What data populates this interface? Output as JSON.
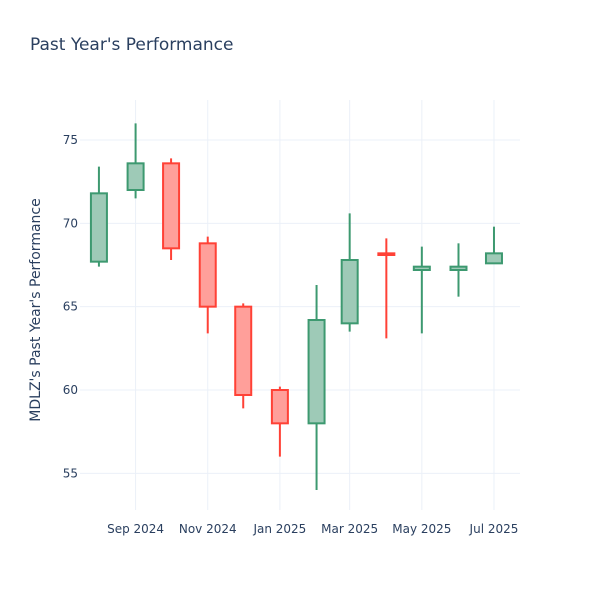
{
  "colors": {
    "increasing_line": "#3d9970",
    "increasing_fill": "#9ecab7",
    "decreasing_line": "#ff4136",
    "decreasing_fill": "#ff9f9a",
    "grid": "#ebf0f8",
    "text": "#2a3f5f",
    "background": "#ffffff"
  },
  "chart_data": {
    "type": "candlestick",
    "title": "Past Year's Performance",
    "xlabel": "",
    "ylabel": "MDLZ's Past Year's Performance",
    "grid": true,
    "legend": "none",
    "ylim": [
      52.8,
      77.4
    ],
    "xlim": [
      "2024-07-16",
      "2025-07-23"
    ],
    "x_ticks": [
      {
        "date": "2024-09-01",
        "label": "Sep 2024"
      },
      {
        "date": "2024-11-01",
        "label": "Nov 2024"
      },
      {
        "date": "2025-01-01",
        "label": "Jan 2025"
      },
      {
        "date": "2025-03-01",
        "label": "Mar 2025"
      },
      {
        "date": "2025-05-01",
        "label": "May 2025"
      },
      {
        "date": "2025-07-01",
        "label": "Jul 2025"
      }
    ],
    "y_ticks": [
      55,
      60,
      65,
      70,
      75
    ],
    "candles": [
      {
        "date": "2024-08-01",
        "open": 67.7,
        "high": 73.4,
        "low": 67.4,
        "close": 71.8
      },
      {
        "date": "2024-09-01",
        "open": 72.0,
        "high": 76.0,
        "low": 71.5,
        "close": 73.6
      },
      {
        "date": "2024-10-01",
        "open": 73.6,
        "high": 73.9,
        "low": 67.8,
        "close": 68.5
      },
      {
        "date": "2024-11-01",
        "open": 68.8,
        "high": 69.2,
        "low": 63.4,
        "close": 65.0
      },
      {
        "date": "2024-12-01",
        "open": 65.0,
        "high": 65.2,
        "low": 58.9,
        "close": 59.7
      },
      {
        "date": "2025-01-01",
        "open": 60.0,
        "high": 60.2,
        "low": 56.0,
        "close": 58.0
      },
      {
        "date": "2025-02-01",
        "open": 58.0,
        "high": 66.3,
        "low": 54.0,
        "close": 64.2
      },
      {
        "date": "2025-03-01",
        "open": 64.0,
        "high": 70.6,
        "low": 63.5,
        "close": 67.8
      },
      {
        "date": "2025-04-01",
        "open": 68.2,
        "high": 69.1,
        "low": 63.1,
        "close": 68.1
      },
      {
        "date": "2025-05-01",
        "open": 67.2,
        "high": 68.6,
        "low": 63.4,
        "close": 67.4
      },
      {
        "date": "2025-06-01",
        "open": 67.2,
        "high": 68.8,
        "low": 65.6,
        "close": 67.4
      },
      {
        "date": "2025-07-01",
        "open": 67.6,
        "high": 69.8,
        "low": 67.6,
        "close": 68.2
      }
    ]
  }
}
